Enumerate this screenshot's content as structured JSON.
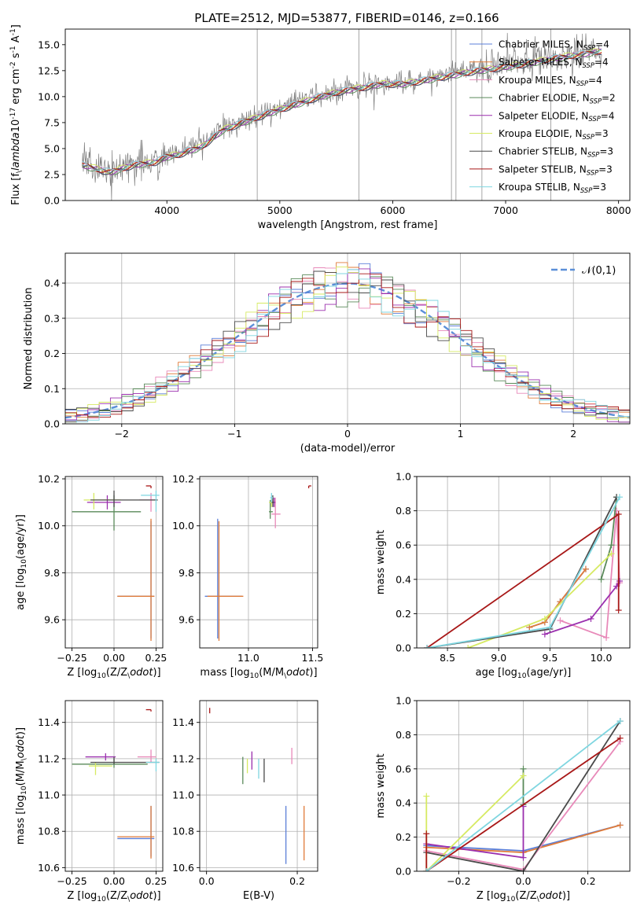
{
  "figure": {
    "title": "PLATE=2512, MJD=53877, FIBERID=0146, z=0.166"
  },
  "models": [
    {
      "label": "Chabrier MILES, N$_{SSP}$=4",
      "color": "#5b7fd8"
    },
    {
      "label": "Salpeter MILES, N$_{SSP}$=4",
      "color": "#e07b39"
    },
    {
      "label": "Kroupa MILES, N$_{SSP}$=4",
      "color": "#e889b9"
    },
    {
      "label": "Chabrier ELODIE, N$_{SSP}$=2",
      "color": "#5a8a5a"
    },
    {
      "label": "Salpeter ELODIE, N$_{SSP}$=4",
      "color": "#9b2fae"
    },
    {
      "label": "Kroupa ELODIE, N$_{SSP}$=3",
      "color": "#d6ea62"
    },
    {
      "label": "Chabrier STELIB, N$_{SSP}$=3",
      "color": "#4a4a4a"
    },
    {
      "label": "Salpeter STELIB, N$_{SSP}$=3",
      "color": "#a81818"
    },
    {
      "label": "Kroupa STELIB, N$_{SSP}$=3",
      "color": "#7fd6e0"
    }
  ],
  "chart_data": [
    {
      "id": "spectrum",
      "type": "line",
      "xlabel": "wavelength [Angstrom, rest frame]",
      "ylabel": "Flux [f$_\\lambda$10$^{-17}$ erg cm$^{-2}$ s$^{-1}$ A$^{-1}$]",
      "xlim": [
        3100,
        8100
      ],
      "ylim": [
        0,
        16.5
      ],
      "xticks": [
        4000,
        5000,
        6000,
        7000,
        8000
      ],
      "yticks": [
        0.0,
        2.5,
        5.0,
        7.5,
        10.0,
        12.5,
        15.0
      ],
      "grid": false,
      "legend": "top-right",
      "data_color": "#808080",
      "continuum_anchors": [
        [
          3250,
          3.6
        ],
        [
          3500,
          2.9
        ],
        [
          3700,
          3.6
        ],
        [
          3900,
          3.9
        ],
        [
          4000,
          4.4
        ],
        [
          4100,
          4.6
        ],
        [
          4200,
          5.0
        ],
        [
          4300,
          5.3
        ],
        [
          4500,
          7.0
        ],
        [
          4700,
          7.8
        ],
        [
          4900,
          8.6
        ],
        [
          5100,
          9.3
        ],
        [
          5300,
          10.0
        ],
        [
          5500,
          10.6
        ],
        [
          5700,
          11.0
        ],
        [
          5900,
          11.4
        ],
        [
          6100,
          11.4
        ],
        [
          6300,
          11.8
        ],
        [
          6500,
          12.2
        ],
        [
          6700,
          12.6
        ],
        [
          6900,
          12.9
        ],
        [
          7100,
          13.2
        ],
        [
          7300,
          13.6
        ],
        [
          7500,
          14.0
        ],
        [
          7700,
          14.3
        ],
        [
          7850,
          14.6
        ]
      ]
    },
    {
      "id": "residuals",
      "type": "step",
      "xlabel": "(data-model)/error",
      "ylabel": "Normed distribution",
      "xlim": [
        -2.5,
        2.5
      ],
      "ylim": [
        0,
        0.485
      ],
      "xticks": [
        -2,
        -1,
        0,
        1,
        2
      ],
      "yticks": [
        0.0,
        0.1,
        0.2,
        0.3,
        0.4
      ],
      "grid": true,
      "legend": "top-right",
      "reference_label": "$\\mathcal{N}(0,1)$",
      "reference_color": "#5b8fd8",
      "bin_width": 0.1
    },
    {
      "id": "age-vs-z",
      "type": "errorbar",
      "xlabel": "Z [log$_{10}$(Z/Z$_\\odot$)]",
      "ylabel": "age  [log$_{10}$(age/yr)]",
      "xlim": [
        -0.29,
        0.29
      ],
      "ylim": [
        9.48,
        10.21
      ],
      "xticks": [
        -0.25,
        0.0,
        0.25
      ],
      "yticks": [
        9.6,
        9.8,
        10.0,
        10.2
      ],
      "grid": true,
      "points": [
        {
          "model": 0,
          "x": 0.22,
          "y": 9.7,
          "xerr": [
            0.2,
            0.02
          ],
          "yerr": [
            0.18,
            0.32
          ]
        },
        {
          "model": 1,
          "x": 0.22,
          "y": 9.7,
          "xerr": [
            0.2,
            0.02
          ],
          "yerr": [
            0.19,
            0.33
          ]
        },
        {
          "model": 2,
          "x": 0.22,
          "y": 10.11,
          "xerr": [
            0.07,
            0.03
          ],
          "yerr": [
            0.05,
            0.03
          ]
        },
        {
          "model": 3,
          "x": 0.0,
          "y": 10.06,
          "xerr": [
            0.25,
            0.16
          ],
          "yerr": [
            0.08,
            0.07
          ]
        },
        {
          "model": 4,
          "x": -0.04,
          "y": 10.1,
          "xerr": [
            0.12,
            0.08
          ],
          "yerr": [
            0.03,
            0.03
          ]
        },
        {
          "model": 5,
          "x": -0.12,
          "y": 10.11,
          "xerr": [
            0.06,
            0.16
          ],
          "yerr": [
            0.04,
            0.03
          ]
        },
        {
          "model": 6,
          "x": 0.0,
          "y": 10.11,
          "xerr": [
            0.14,
            0.26
          ],
          "yerr": [
            0.03,
            0.04
          ]
        },
        {
          "model": 7,
          "x": 0.22,
          "y": 10.17,
          "xerr": [
            0.03,
            0.0
          ],
          "yerr": [
            0.01,
            0.0
          ]
        },
        {
          "model": 8,
          "x": 0.25,
          "y": 10.13,
          "xerr": [
            0.09,
            0.02
          ],
          "yerr": [
            0.07,
            0.02
          ]
        }
      ]
    },
    {
      "id": "age-vs-mass",
      "type": "errorbar",
      "xlabel": "mass [log$_{10}$(M/M$_\\odot$)]",
      "ylabel": "",
      "xlim": [
        10.62,
        11.54
      ],
      "ylim": [
        9.48,
        10.21
      ],
      "xticks": [
        11.0,
        11.5
      ],
      "yticks": [
        9.6,
        9.8,
        10.0,
        10.2
      ],
      "grid": true,
      "points": [
        {
          "model": 0,
          "x": 10.76,
          "y": 9.7,
          "xerr": [
            0.1,
            0.19
          ],
          "yerr": [
            0.18,
            0.33
          ]
        },
        {
          "model": 1,
          "x": 10.77,
          "y": 9.7,
          "xerr": [
            0.09,
            0.19
          ],
          "yerr": [
            0.19,
            0.32
          ]
        },
        {
          "model": 2,
          "x": 11.21,
          "y": 10.05,
          "xerr": [
            0.03,
            0.04
          ],
          "yerr": [
            0.06,
            0.07
          ]
        },
        {
          "model": 3,
          "x": 11.17,
          "y": 10.06,
          "xerr": [
            0.01,
            0.02
          ],
          "yerr": [
            0.03,
            0.05
          ]
        },
        {
          "model": 4,
          "x": 11.2,
          "y": 10.1,
          "xerr": [
            0.01,
            0.01
          ],
          "yerr": [
            0.02,
            0.02
          ]
        },
        {
          "model": 5,
          "x": 11.18,
          "y": 10.1,
          "xerr": [
            0.02,
            0.01
          ],
          "yerr": [
            0.02,
            0.02
          ]
        },
        {
          "model": 6,
          "x": 11.19,
          "y": 10.1,
          "xerr": [
            0.01,
            0.01
          ],
          "yerr": [
            0.02,
            0.03
          ]
        },
        {
          "model": 7,
          "x": 11.47,
          "y": 10.17,
          "xerr": [
            0.0,
            0.02
          ],
          "yerr": [
            0.01,
            0.0
          ]
        },
        {
          "model": 8,
          "x": 11.18,
          "y": 10.12,
          "xerr": [
            0.01,
            0.01
          ],
          "yerr": [
            0.02,
            0.02
          ]
        }
      ]
    },
    {
      "id": "massweight-vs-age",
      "type": "line",
      "xlabel": "age  [log$_{10}$(age/yr)]",
      "ylabel": "mass weight",
      "xlim": [
        8.2,
        10.28
      ],
      "ylim": [
        0,
        1.0
      ],
      "xticks": [
        8.5,
        9.0,
        9.5,
        10.0
      ],
      "yticks": [
        0.0,
        0.2,
        0.4,
        0.6,
        0.8,
        1.0
      ],
      "grid": true,
      "series": [
        {
          "model": 0,
          "x": [
            9.3,
            9.45,
            9.6,
            9.85
          ],
          "y": [
            0.12,
            0.15,
            0.27,
            0.46
          ]
        },
        {
          "model": 1,
          "x": [
            9.3,
            9.45,
            9.6,
            9.85
          ],
          "y": [
            0.12,
            0.15,
            0.27,
            0.46
          ]
        },
        {
          "model": 2,
          "x": [
            9.6,
            10.05,
            10.15,
            10.18
          ],
          "y": [
            0.16,
            0.06,
            0.8,
            0.38
          ]
        },
        {
          "model": 3,
          "x": [
            10.0,
            10.1,
            10.15
          ],
          "y": [
            0.4,
            0.6,
            0.88
          ]
        },
        {
          "model": 4,
          "x": [
            9.45,
            9.9,
            10.15,
            10.18
          ],
          "y": [
            0.08,
            0.17,
            0.36,
            0.39
          ]
        },
        {
          "model": 5,
          "x": [
            8.7,
            9.45,
            10.1
          ],
          "y": [
            0.0,
            0.17,
            0.55
          ]
        },
        {
          "model": 6,
          "x": [
            8.3,
            9.5,
            10.15
          ],
          "y": [
            0.0,
            0.11,
            0.88
          ]
        },
        {
          "model": 7,
          "x": [
            8.3,
            10.17,
            10.17
          ],
          "y": [
            0.0,
            0.78,
            0.22
          ]
        },
        {
          "model": 8,
          "x": [
            8.3,
            9.5,
            10.18
          ],
          "y": [
            0.0,
            0.12,
            0.88
          ]
        }
      ]
    },
    {
      "id": "mass-vs-z",
      "type": "errorbar",
      "xlabel": "Z [log$_{10}$(Z/Z$_\\odot$)]",
      "ylabel": "mass [log$_{10}$(M/M$_\\odot$)]",
      "xlim": [
        -0.29,
        0.29
      ],
      "ylim": [
        10.58,
        11.52
      ],
      "xticks": [
        -0.25,
        0.0,
        0.25
      ],
      "yticks": [
        10.6,
        10.8,
        11.0,
        11.2,
        11.4
      ],
      "grid": true,
      "points": [
        {
          "model": 0,
          "x": 0.22,
          "y": 10.76,
          "xerr": [
            0.2,
            0.02
          ],
          "yerr": [
            0.1,
            0.18
          ]
        },
        {
          "model": 1,
          "x": 0.22,
          "y": 10.77,
          "xerr": [
            0.2,
            0.02
          ],
          "yerr": [
            0.12,
            0.17
          ]
        },
        {
          "model": 2,
          "x": 0.22,
          "y": 11.21,
          "xerr": [
            0.08,
            0.03
          ],
          "yerr": [
            0.03,
            0.04
          ]
        },
        {
          "model": 3,
          "x": 0.0,
          "y": 11.17,
          "xerr": [
            0.25,
            0.2
          ],
          "yerr": [
            0.02,
            0.03
          ]
        },
        {
          "model": 4,
          "x": -0.05,
          "y": 11.21,
          "xerr": [
            0.12,
            0.06
          ],
          "yerr": [
            0.02,
            0.02
          ]
        },
        {
          "model": 5,
          "x": -0.11,
          "y": 11.16,
          "xerr": [
            0.04,
            0.1
          ],
          "yerr": [
            0.05,
            0.02
          ]
        },
        {
          "model": 6,
          "x": 0.0,
          "y": 11.18,
          "xerr": [
            0.14,
            0.27
          ],
          "yerr": [
            0.01,
            0.03
          ]
        },
        {
          "model": 7,
          "x": 0.22,
          "y": 11.47,
          "xerr": [
            0.03,
            0.0
          ],
          "yerr": [
            0.01,
            0.0
          ]
        },
        {
          "model": 8,
          "x": 0.25,
          "y": 11.18,
          "xerr": [
            0.06,
            0.02
          ],
          "yerr": [
            0.05,
            0.02
          ]
        }
      ]
    },
    {
      "id": "mass-vs-ebv",
      "type": "errorbar",
      "xlabel": "E(B-V)",
      "ylabel": "",
      "xlim": [
        -0.015,
        0.245
      ],
      "ylim": [
        10.58,
        11.52
      ],
      "xticks": [
        0.0,
        0.2
      ],
      "yticks": [
        10.6,
        10.8,
        11.0,
        11.2,
        11.4
      ],
      "grid": true,
      "points": [
        {
          "model": 0,
          "x": 0.175,
          "y": 10.76,
          "xerr": [
            0.0,
            0.0
          ],
          "yerr": [
            0.14,
            0.18
          ]
        },
        {
          "model": 1,
          "x": 0.215,
          "y": 10.77,
          "xerr": [
            0.0,
            0.0
          ],
          "yerr": [
            0.13,
            0.17
          ]
        },
        {
          "model": 2,
          "x": 0.188,
          "y": 11.2,
          "xerr": [
            0.0,
            0.0
          ],
          "yerr": [
            0.03,
            0.06
          ]
        },
        {
          "model": 3,
          "x": 0.08,
          "y": 11.14,
          "xerr": [
            0.0,
            0.0
          ],
          "yerr": [
            0.08,
            0.07
          ]
        },
        {
          "model": 4,
          "x": 0.1,
          "y": 11.18,
          "xerr": [
            0.0,
            0.0
          ],
          "yerr": [
            0.04,
            0.06
          ]
        },
        {
          "model": 5,
          "x": 0.09,
          "y": 11.16,
          "xerr": [
            0.0,
            0.0
          ],
          "yerr": [
            0.04,
            0.04
          ]
        },
        {
          "model": 6,
          "x": 0.127,
          "y": 11.15,
          "xerr": [
            0.0,
            0.0
          ],
          "yerr": [
            0.08,
            0.05
          ]
        },
        {
          "model": 7,
          "x": 0.007,
          "y": 11.47,
          "xerr": [
            0.0,
            0.0
          ],
          "yerr": [
            0.02,
            0.01
          ]
        },
        {
          "model": 8,
          "x": 0.115,
          "y": 11.15,
          "xerr": [
            0.0,
            0.0
          ],
          "yerr": [
            0.06,
            0.05
          ]
        }
      ]
    },
    {
      "id": "massweight-vs-z",
      "type": "line",
      "xlabel": "Z [log$_{10}$(Z/Z$_\\odot$)]",
      "ylabel": "mass weight",
      "xlim": [
        -0.33,
        0.33
      ],
      "ylim": [
        0,
        1.0
      ],
      "xticks": [
        -0.2,
        0.0,
        0.2
      ],
      "yticks": [
        0.0,
        0.2,
        0.4,
        0.6,
        0.8,
        1.0
      ],
      "grid": true,
      "series": [
        {
          "model": 0,
          "x": [
            -0.3,
            0.0,
            0.3
          ],
          "y": [
            0.15,
            0.12,
            0.27
          ]
        },
        {
          "model": 1,
          "x": [
            -0.3,
            0.0,
            0.3
          ],
          "y": [
            0.14,
            0.11,
            0.27
          ]
        },
        {
          "model": 2,
          "x": [
            -0.3,
            0.0,
            0.3
          ],
          "y": [
            0.12,
            0.01,
            0.76
          ]
        },
        {
          "model": 3,
          "x": [
            0.0,
            0.0
          ],
          "y": [
            0.39,
            0.6
          ]
        },
        {
          "model": 4,
          "x": [
            -0.3,
            0.0,
            0.0
          ],
          "y": [
            0.16,
            0.08,
            0.38
          ]
        },
        {
          "model": 5,
          "x": [
            -0.3,
            -0.3,
            0.0
          ],
          "y": [
            0.44,
            0.0,
            0.56
          ]
        },
        {
          "model": 6,
          "x": [
            -0.3,
            0.0,
            0.3
          ],
          "y": [
            0.11,
            0.0,
            0.88
          ]
        },
        {
          "model": 7,
          "x": [
            -0.3,
            -0.3,
            0.3
          ],
          "y": [
            0.22,
            0.0,
            0.78
          ]
        },
        {
          "model": 8,
          "x": [
            -0.3,
            0.3
          ],
          "y": [
            0.0,
            0.88
          ]
        }
      ]
    }
  ]
}
